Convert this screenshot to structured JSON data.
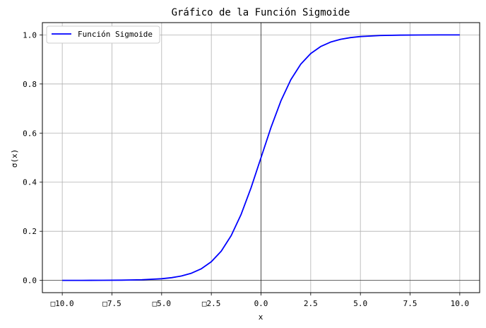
{
  "chart_data": {
    "type": "line",
    "title": "Gráfico de la Función Sigmoide",
    "xlabel": "x",
    "ylabel": "σ(x)",
    "xlim": [
      -11.0,
      11.0
    ],
    "ylim": [
      -0.05,
      1.05
    ],
    "x_ticks": [
      -10.0,
      -7.5,
      -5.0,
      -2.5,
      0.0,
      2.5,
      5.0,
      7.5,
      10.0
    ],
    "x_tick_labels": [
      "□10.0",
      "□7.5",
      "□5.0",
      "□2.5",
      "0.0",
      "2.5",
      "5.0",
      "7.5",
      "10.0"
    ],
    "y_ticks": [
      0.0,
      0.2,
      0.4,
      0.6,
      0.8,
      1.0
    ],
    "y_tick_labels": [
      "0.0",
      "0.2",
      "0.4",
      "0.6",
      "0.8",
      "1.0"
    ],
    "grid": true,
    "reference_lines": {
      "x": 0,
      "y": 0
    },
    "legend_position": "top-left",
    "series": [
      {
        "name": "Función Sigmoide",
        "color": "#0000ff",
        "x": [
          -10,
          -9,
          -8,
          -7,
          -6,
          -5,
          -4.5,
          -4,
          -3.5,
          -3,
          -2.5,
          -2,
          -1.5,
          -1,
          -0.5,
          0,
          0.5,
          1,
          1.5,
          2,
          2.5,
          3,
          3.5,
          4,
          4.5,
          5,
          6,
          7,
          8,
          9,
          10
        ],
        "y": [
          4.54e-05,
          0.0001234,
          0.0003354,
          0.000911,
          0.002473,
          0.006693,
          0.010987,
          0.017986,
          0.029312,
          0.047426,
          0.075858,
          0.119203,
          0.182426,
          0.268941,
          0.377541,
          0.5,
          0.622459,
          0.731059,
          0.817574,
          0.880797,
          0.924142,
          0.952574,
          0.970688,
          0.982014,
          0.989013,
          0.993307,
          0.997527,
          0.999089,
          0.999665,
          0.999877,
          0.9999546
        ]
      }
    ]
  }
}
